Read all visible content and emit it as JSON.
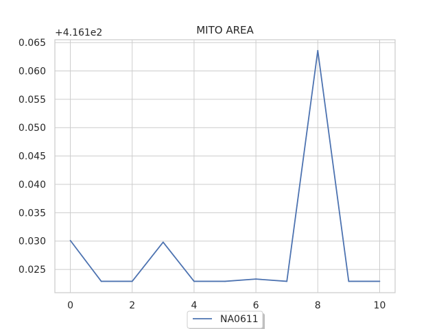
{
  "chart_data": {
    "type": "line",
    "title": "MITO AREA",
    "xlabel": "",
    "ylabel": "",
    "y_offset_label": "+4.161e2",
    "x": [
      0,
      1,
      2,
      3,
      4,
      5,
      6,
      7,
      8,
      9,
      10
    ],
    "xticks": [
      0,
      2,
      4,
      6,
      8,
      10
    ],
    "xlim": [
      -0.5,
      10.5
    ],
    "yticks": [
      0.025,
      0.03,
      0.035,
      0.04,
      0.045,
      0.05,
      0.055,
      0.06,
      0.065
    ],
    "ytick_labels": [
      "0.025",
      "0.030",
      "0.035",
      "0.040",
      "0.045",
      "0.050",
      "0.055",
      "0.060",
      "0.065"
    ],
    "ylim": [
      0.0209,
      0.0655
    ],
    "grid": true,
    "legend_position": "bottom-center",
    "series": [
      {
        "name": "NA0611",
        "color": "#4c72b0",
        "values": [
          0.0301,
          0.0229,
          0.0229,
          0.0298,
          0.0229,
          0.0229,
          0.0233,
          0.0229,
          0.0636,
          0.0229,
          0.0229
        ]
      }
    ]
  }
}
